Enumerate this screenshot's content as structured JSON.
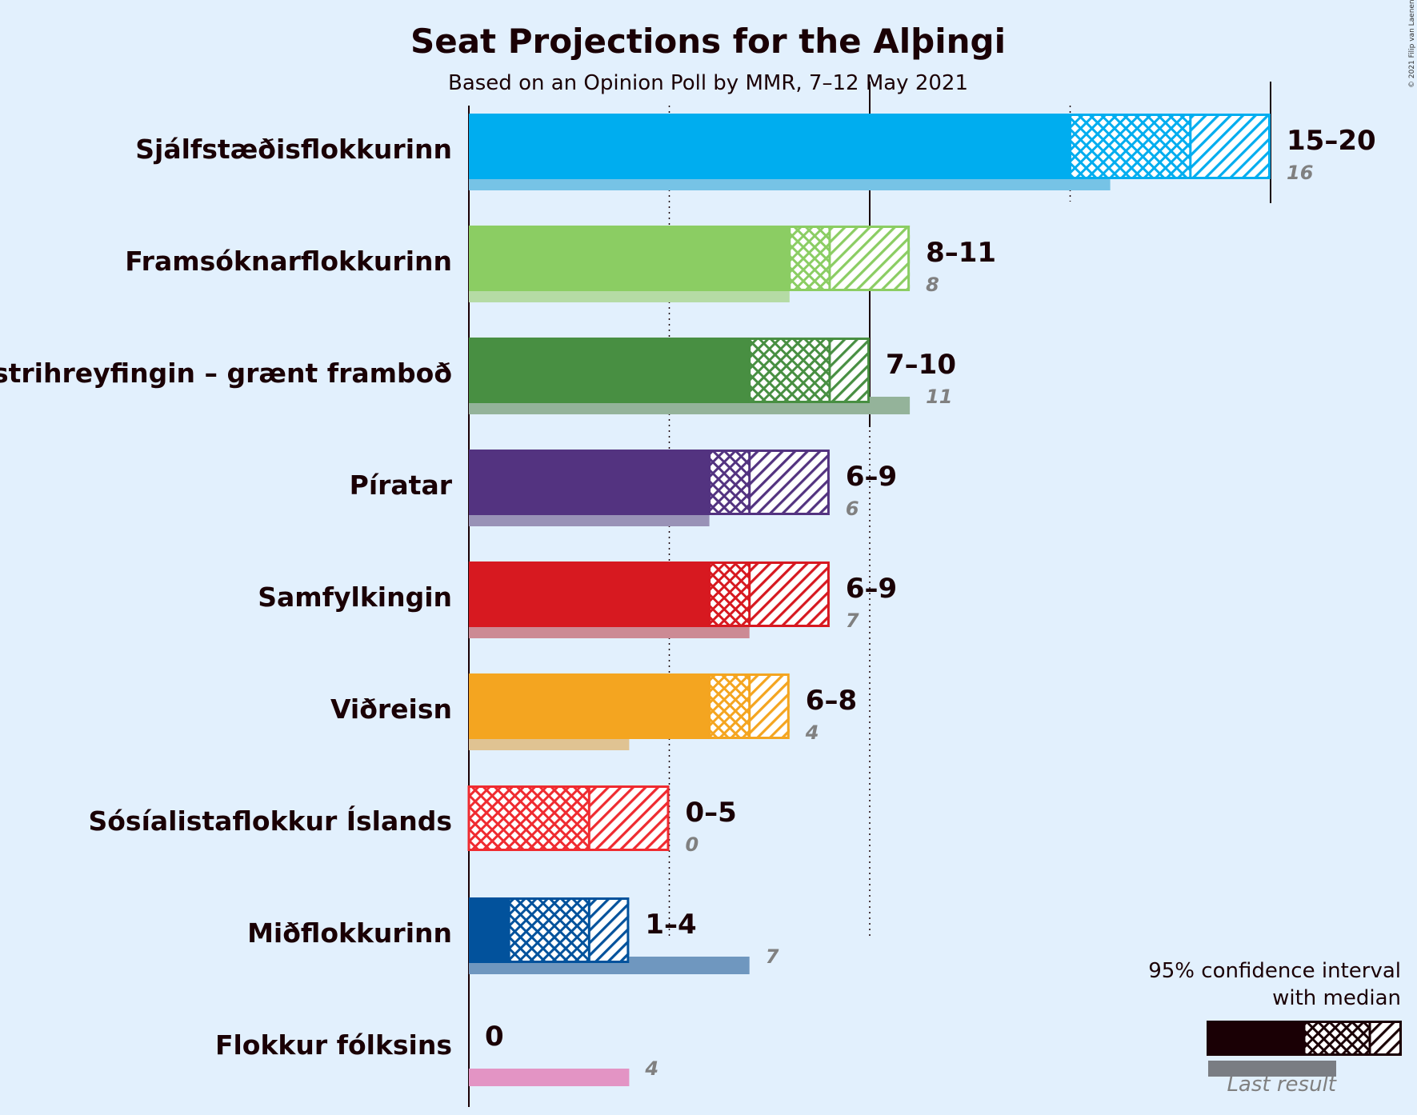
{
  "chart_data": {
    "type": "bar",
    "title": "Seat Projections for the Alþingi",
    "subtitle": "Based on an Opinion Poll by MMR, 7–12 May 2021",
    "copyright": "© 2021 Filip van Laenen",
    "orientation": "horizontal",
    "xlim": [
      0,
      20
    ],
    "gridlines": [
      5,
      10
    ],
    "majority_marks": [
      15,
      20
    ],
    "parties": [
      {
        "name": "Sjálfstæðisflokkurinn",
        "color": "#00adef",
        "light": "#76c3e6",
        "low": 15,
        "median": 18,
        "high": 20,
        "label": "15–20",
        "last": 16
      },
      {
        "name": "Framsóknarflokkurinn",
        "color": "#8bcd63",
        "light": "#b5dba5",
        "low": 8,
        "median": 9,
        "high": 11,
        "label": "8–11",
        "last": 8
      },
      {
        "name": "Vinstrihreyfingin – grænt framboð",
        "color": "#488f42",
        "light": "#94b39a",
        "low": 7,
        "median": 9,
        "high": 10,
        "label": "7–10",
        "last": 11
      },
      {
        "name": "Píratar",
        "color": "#533380",
        "light": "#9992b7",
        "low": 6,
        "median": 7,
        "high": 9,
        "label": "6–9",
        "last": 6
      },
      {
        "name": "Samfylkingin",
        "color": "#d71920",
        "light": "#cc8a94",
        "low": 6,
        "median": 7,
        "high": 9,
        "label": "6–9",
        "last": 7
      },
      {
        "name": "Viðreisn",
        "color": "#f4a520",
        "light": "#e0c392",
        "low": 6,
        "median": 7,
        "high": 8,
        "label": "6–8",
        "last": 4
      },
      {
        "name": "Sósíalistaflokkur Íslands",
        "color": "#ef2b30",
        "light": "#e89aa0",
        "low": 0,
        "median": 3,
        "high": 5,
        "label": "0–5",
        "last": 0
      },
      {
        "name": "Miðflokkurinn",
        "color": "#02529c",
        "light": "#6f97bf",
        "low": 1,
        "median": 3,
        "high": 4,
        "label": "1–4",
        "last": 7
      },
      {
        "name": "Flokkur fólksins",
        "color": "#e4479a",
        "light": "#e394c4",
        "low": 0,
        "median": 0,
        "high": 0,
        "label": "0",
        "last": 4
      }
    ],
    "legend": {
      "title_line1": "95% confidence interval",
      "title_line2": "with median",
      "last_result": "Last result",
      "color": "#1a0005",
      "light": "#7a7d83"
    }
  }
}
